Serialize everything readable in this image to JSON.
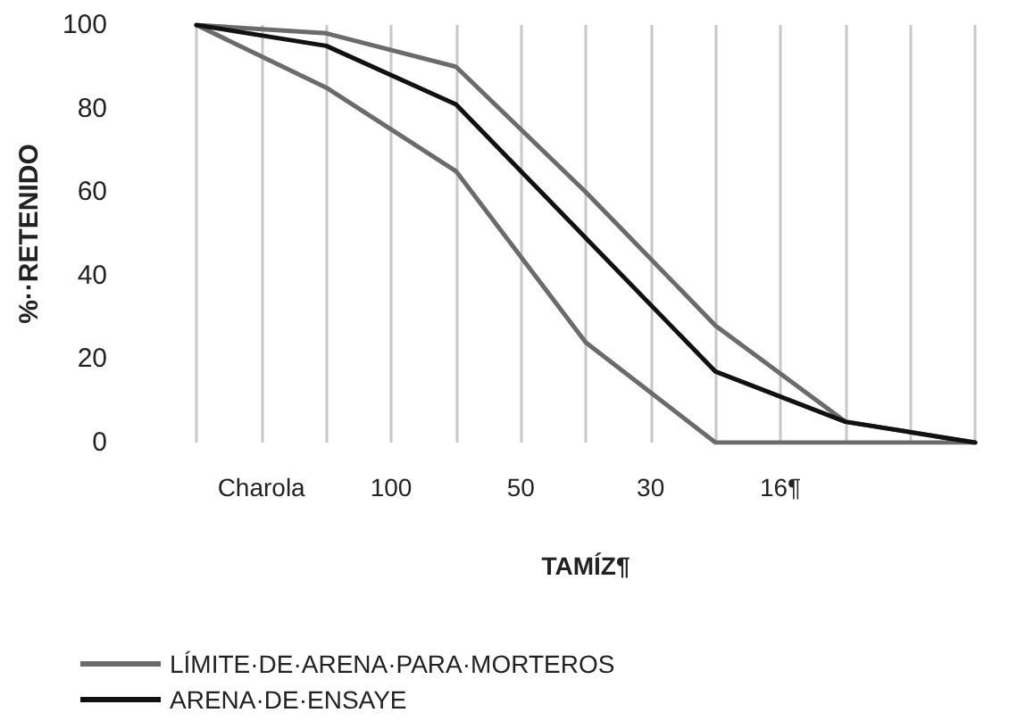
{
  "chart_data": {
    "type": "line",
    "xlabel": "TAMÍZ¶",
    "ylabel": "%··RETENIDO",
    "categories": [
      null,
      "Charola",
      null,
      "100",
      null,
      "50",
      null,
      "30",
      null,
      "16¶",
      null,
      null,
      null
    ],
    "series": [
      {
        "name": "LÍMITE·DE·ARENA·PARA·MORTEROS",
        "color": "#6b6b6b",
        "values": [
          100,
          null,
          98,
          null,
          90,
          null,
          60,
          null,
          28,
          null,
          5,
          null,
          0
        ]
      },
      {
        "color": "#6b6b6b",
        "values": [
          100,
          null,
          85,
          null,
          65,
          null,
          24,
          null,
          0,
          null,
          0,
          null,
          0
        ]
      },
      {
        "name": "ARENA·DE·ENSAYE",
        "color": "#111111",
        "values": [
          100,
          null,
          95,
          null,
          81,
          null,
          49,
          null,
          17,
          null,
          5,
          null,
          0
        ]
      }
    ],
    "ylim": [
      0,
      100
    ],
    "yticks": [
      0,
      20,
      40,
      60,
      80,
      100
    ],
    "grid": "x",
    "legend": "bottom left",
    "marker": "none",
    "line_style": "solid"
  }
}
